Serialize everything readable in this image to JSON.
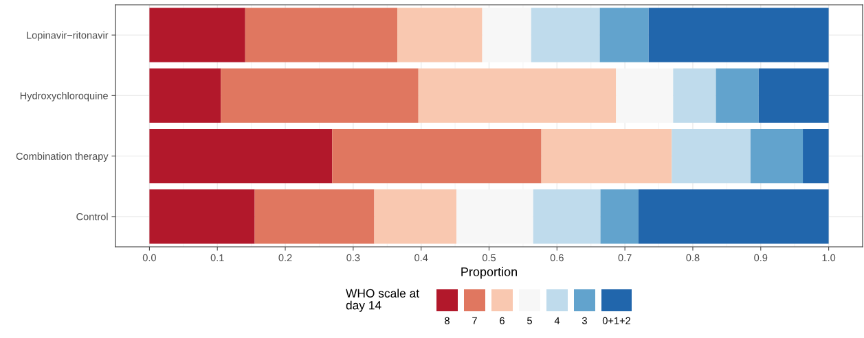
{
  "chart_data": {
    "type": "bar",
    "orientation": "horizontal",
    "stacked": true,
    "categories": [
      "Lopinavir−ritonavir",
      "Hydroxychloroquine",
      "Combination therapy",
      "Control"
    ],
    "series": [
      {
        "name": "8",
        "color": "#b2182b",
        "values": [
          0.141,
          0.105,
          0.269,
          0.155
        ]
      },
      {
        "name": "7",
        "color": "#e07760",
        "values": [
          0.224,
          0.291,
          0.308,
          0.176
        ]
      },
      {
        "name": "6",
        "color": "#f9c8b0",
        "values": [
          0.125,
          0.291,
          0.192,
          0.121
        ]
      },
      {
        "name": "5",
        "color": "#f7f7f7",
        "values": [
          0.072,
          0.084,
          0,
          0.113
        ]
      },
      {
        "name": "4",
        "color": "#bfdbec",
        "values": [
          0.101,
          0.063,
          0.116,
          0.099
        ]
      },
      {
        "name": "3",
        "color": "#62a3cd",
        "values": [
          0.072,
          0.063,
          0.077,
          0.056
        ]
      },
      {
        "name": "0+1+2",
        "color": "#2166ac",
        "values": [
          0.265,
          0.103,
          0.038,
          0.28
        ]
      }
    ],
    "xlabel": "Proportion",
    "legend_title": "WHO scale at\nday 14",
    "legend": "bottom",
    "xlim": [
      -0.05,
      1.05
    ],
    "xticks": [
      {
        "value": 0,
        "label": "0.0"
      },
      0.1,
      0.2,
      0.3,
      0.4,
      0.5,
      0.6,
      0.7,
      0.8,
      0.9,
      {
        "value": 1,
        "label": "1.0"
      }
    ],
    "grid": true
  }
}
